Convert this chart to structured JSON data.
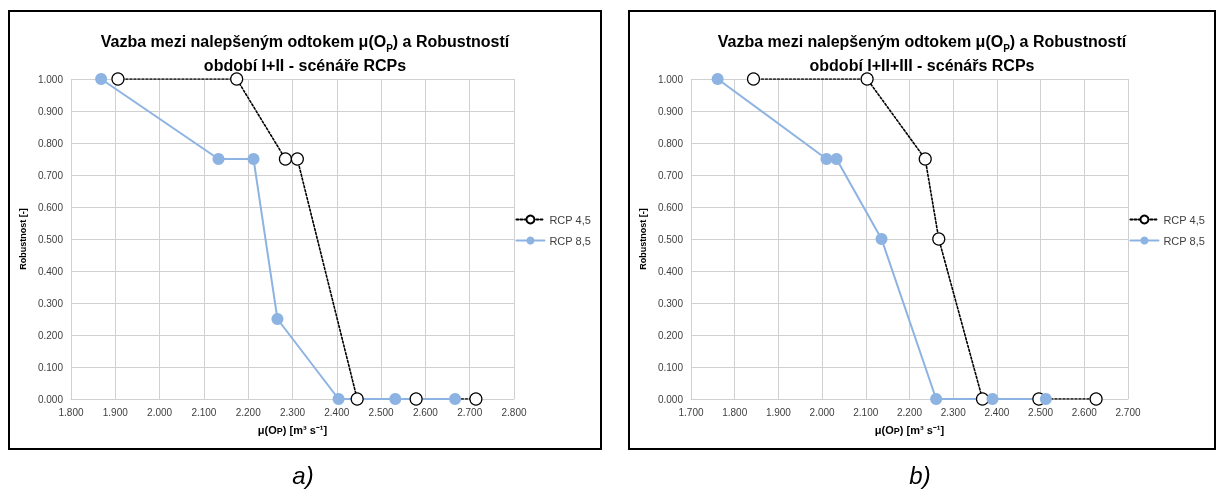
{
  "chart_data": [
    {
      "type": "line",
      "title": "Vazba mezi nalepšeným odtokem μ(O$_{P}$) a Robustností\nobdobí I+II - scénáře RCPs",
      "xlabel": "μ(O$_{P}$) [m³ s⁻¹]",
      "ylabel": "Robustnost [-]",
      "annotations": [
        "a)"
      ],
      "series": [
        {
          "name": "RCP 4,5",
          "color": "#000000",
          "line_style": "dotted",
          "x": [
            1.906,
            2.174,
            2.284,
            2.311,
            2.446,
            2.579,
            2.714
          ],
          "values": [
            1,
            1,
            0.75,
            0.75,
            0,
            0,
            0
          ]
        },
        {
          "name": "RCP 8,5",
          "color": "#8db3e2",
          "line_style": "solid",
          "x": [
            1.868,
            2.133,
            2.212,
            2.266,
            2.404,
            2.532,
            2.667
          ],
          "values": [
            1,
            0.75,
            0.75,
            0.25,
            0,
            0,
            0
          ]
        }
      ],
      "xlim": [
        1.8,
        2.8
      ],
      "xticks": [
        {
          "value": 1.8,
          "label": "1.800"
        },
        {
          "value": 1.9,
          "label": "1.900"
        },
        {
          "value": 2.0,
          "label": "2.000"
        },
        {
          "value": 2.1,
          "label": "2.100"
        },
        {
          "value": 2.2,
          "label": "2.200"
        },
        {
          "value": 2.3,
          "label": "2.300"
        },
        {
          "value": 2.4,
          "label": "2.400"
        },
        {
          "value": 2.5,
          "label": "2.500"
        },
        {
          "value": 2.6,
          "label": "2.600"
        },
        {
          "value": 2.7,
          "label": "2.700"
        },
        {
          "value": 2.8,
          "label": "2.800"
        }
      ],
      "ylim": [
        0,
        1
      ],
      "yticks": [
        {
          "value": 0,
          "label": "0.000"
        },
        {
          "value": 0.1,
          "label": "0.100"
        },
        {
          "value": 0.2,
          "label": "0.200"
        },
        {
          "value": 0.3,
          "label": "0.300"
        },
        {
          "value": 0.4,
          "label": "0.400"
        },
        {
          "value": 0.5,
          "label": "0.500"
        },
        {
          "value": 0.6,
          "label": "0.600"
        },
        {
          "value": 0.7,
          "label": "0.700"
        },
        {
          "value": 0.8,
          "label": "0.800"
        },
        {
          "value": 0.9,
          "label": "0.900"
        },
        {
          "value": 1,
          "label": "1.000"
        }
      ],
      "grid": true,
      "legend": "right",
      "marker": "circle"
    },
    {
      "type": "line",
      "title": "Vazba mezi nalepšeným odtokem μ(O$_{P}$) a Robustností\nobdobí I+II+III - scénářs RCPs",
      "xlabel": "μ(O$_{P}$) [m³ s⁻¹]",
      "ylabel": "Robustnost [-]",
      "annotations": [
        "b)"
      ],
      "series": [
        {
          "name": "RCP 4,5",
          "color": "#000000",
          "line_style": "dotted",
          "x": [
            1.843,
            2.103,
            2.236,
            2.267,
            2.367,
            2.496,
            2.627
          ],
          "values": [
            1,
            1,
            0.75,
            0.5,
            0,
            0,
            0
          ]
        },
        {
          "name": "RCP 8,5",
          "color": "#8db3e2",
          "line_style": "solid",
          "x": [
            1.761,
            2.01,
            2.033,
            2.136,
            2.261,
            2.39,
            2.512
          ],
          "values": [
            1,
            0.75,
            0.75,
            0.5,
            0,
            0,
            0
          ]
        }
      ],
      "xlim": [
        1.7,
        2.7
      ],
      "xticks": [
        {
          "value": 1.7,
          "label": "1.700"
        },
        {
          "value": 1.8,
          "label": "1.800"
        },
        {
          "value": 1.9,
          "label": "1.900"
        },
        {
          "value": 2.0,
          "label": "2.000"
        },
        {
          "value": 2.1,
          "label": "2.100"
        },
        {
          "value": 2.2,
          "label": "2.200"
        },
        {
          "value": 2.3,
          "label": "2.300"
        },
        {
          "value": 2.4,
          "label": "2.400"
        },
        {
          "value": 2.5,
          "label": "2.500"
        },
        {
          "value": 2.6,
          "label": "2.600"
        },
        {
          "value": 2.7,
          "label": "2.700"
        }
      ],
      "ylim": [
        0,
        1
      ],
      "yticks": [
        {
          "value": 0,
          "label": "0.000"
        },
        {
          "value": 0.1,
          "label": "0.100"
        },
        {
          "value": 0.2,
          "label": "0.200"
        },
        {
          "value": 0.3,
          "label": "0.300"
        },
        {
          "value": 0.4,
          "label": "0.400"
        },
        {
          "value": 0.5,
          "label": "0.500"
        },
        {
          "value": 0.6,
          "label": "0.600"
        },
        {
          "value": 0.7,
          "label": "0.700"
        },
        {
          "value": 0.8,
          "label": "0.800"
        },
        {
          "value": 0.9,
          "label": "0.900"
        },
        {
          "value": 1,
          "label": "1.000"
        }
      ],
      "grid": true,
      "legend": "right",
      "marker": "circle"
    }
  ]
}
